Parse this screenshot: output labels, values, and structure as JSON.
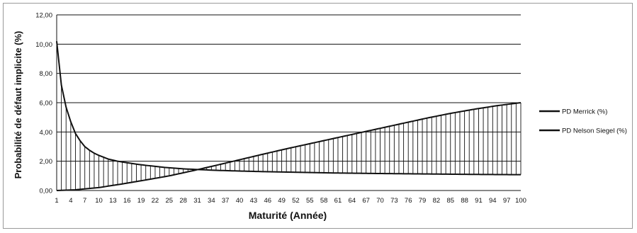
{
  "chart_data": {
    "type": "line",
    "xlabel": "Maturité (Année)",
    "ylabel": "Probabilité de défaut implicite (%)",
    "ylim": [
      0,
      12
    ],
    "yticks": [
      "0,00",
      "2,00",
      "4,00",
      "6,00",
      "8,00",
      "10,00",
      "12,00"
    ],
    "xlim": [
      1,
      100
    ],
    "xticks": [
      1,
      4,
      7,
      10,
      13,
      16,
      19,
      22,
      25,
      28,
      31,
      34,
      37,
      40,
      43,
      46,
      49,
      52,
      55,
      58,
      61,
      64,
      67,
      70,
      73,
      76,
      79,
      82,
      85,
      88,
      91,
      94,
      97,
      100
    ],
    "grid": "horizontal",
    "legend_position": "right",
    "vertical_fill_lines_between_series": true,
    "series": [
      {
        "name": "PD Merrick (%)",
        "color": "#111111",
        "x": [
          1,
          2,
          3,
          4,
          5,
          6,
          7,
          8,
          9,
          10,
          12,
          14,
          16,
          18,
          20,
          22,
          24,
          26,
          28,
          30,
          32,
          35,
          40,
          45,
          50,
          60,
          70,
          80,
          90,
          100
        ],
        "values": [
          10.2,
          7.2,
          5.7,
          4.7,
          3.9,
          3.4,
          3.0,
          2.75,
          2.55,
          2.4,
          2.15,
          2.0,
          1.9,
          1.8,
          1.72,
          1.65,
          1.58,
          1.53,
          1.48,
          1.45,
          1.42,
          1.38,
          1.33,
          1.29,
          1.26,
          1.2,
          1.16,
          1.13,
          1.1,
          1.08
        ]
      },
      {
        "name": "PD Nelson Siegel (%)",
        "color": "#111111",
        "x": [
          1,
          5,
          10,
          15,
          20,
          25,
          30,
          35,
          40,
          45,
          50,
          55,
          60,
          65,
          70,
          75,
          80,
          85,
          90,
          95,
          100
        ],
        "values": [
          0.0,
          0.05,
          0.2,
          0.45,
          0.72,
          1.0,
          1.35,
          1.72,
          2.1,
          2.48,
          2.85,
          3.2,
          3.55,
          3.9,
          4.25,
          4.6,
          4.95,
          5.27,
          5.55,
          5.8,
          6.0
        ]
      }
    ]
  }
}
